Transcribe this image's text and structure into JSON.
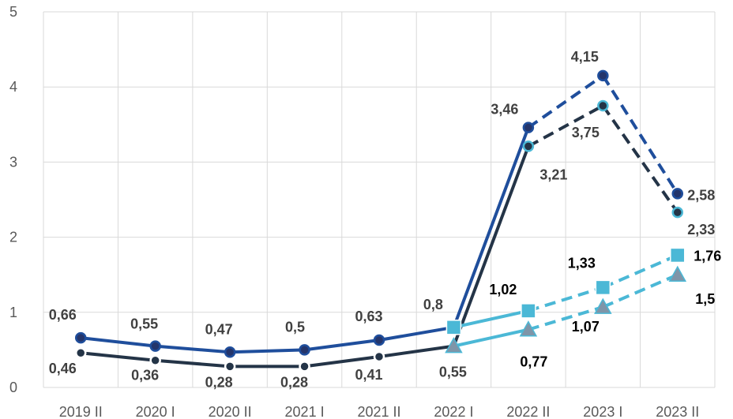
{
  "chart_data": {
    "type": "line",
    "title": "",
    "xlabel": "",
    "ylabel": "",
    "categories": [
      "2019 II",
      "2020 I",
      "2020 II",
      "2021 I",
      "2021 II",
      "2022 I",
      "2022 II",
      "2023 I",
      "2023 II"
    ],
    "ylim": [
      0,
      5
    ],
    "yticks": [
      0,
      1,
      2,
      3,
      4,
      5
    ],
    "grid": true,
    "legend": "none",
    "series": [
      {
        "id": "blue",
        "color": "#1f4e9c",
        "marker": "circle",
        "solid_until": "2022 II",
        "dashed_from": "2022 II",
        "values": [
          0.66,
          0.55,
          0.47,
          0.5,
          0.63,
          0.8,
          3.46,
          4.15,
          2.58
        ],
        "labels": [
          "0,66",
          "0,55",
          "0,47",
          "0,5",
          "0,63",
          "0,8",
          "3,46",
          "4,15",
          "2,58"
        ]
      },
      {
        "id": "navy",
        "color": "#243447",
        "marker": "circle",
        "solid_until": "2022 II",
        "dashed_from": "2022 II",
        "values": [
          0.46,
          0.36,
          0.28,
          0.28,
          0.41,
          0.55,
          3.21,
          3.75,
          2.33
        ],
        "labels": [
          "0,46",
          "0,36",
          "0,28",
          "0,28",
          "0,41",
          "0,55",
          "3,21",
          "3,75",
          "2,33"
        ]
      },
      {
        "id": "cyan",
        "color": "#4bb8d6",
        "marker": "square",
        "values": [
          null,
          null,
          null,
          null,
          null,
          0.8,
          1.02,
          1.33,
          1.76
        ],
        "labels": [
          null,
          null,
          null,
          null,
          null,
          null,
          "1,02",
          "1,33",
          "1,76"
        ]
      },
      {
        "id": "teal",
        "color": "#4bb8d6",
        "marker": "triangle",
        "values": [
          null,
          null,
          null,
          null,
          null,
          0.55,
          0.77,
          1.07,
          1.5
        ],
        "labels": [
          null,
          null,
          null,
          null,
          null,
          null,
          "0,77",
          "1,07",
          "1,5"
        ]
      }
    ]
  }
}
